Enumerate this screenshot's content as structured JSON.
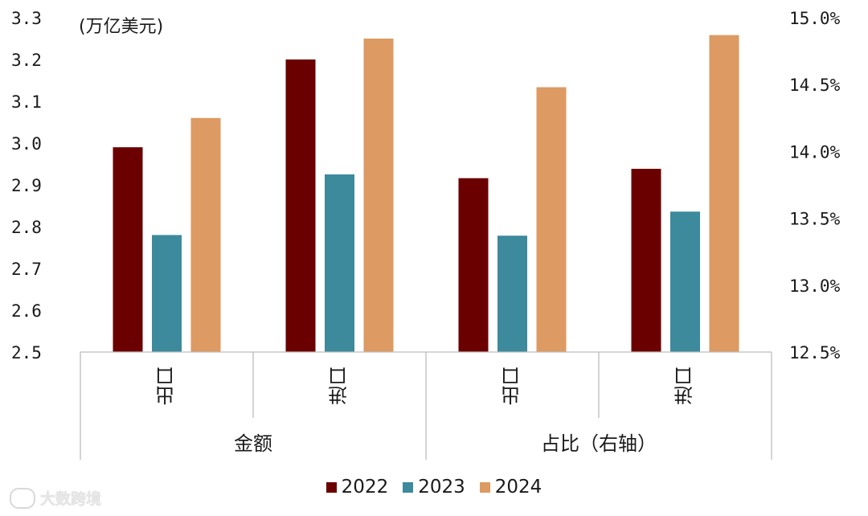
{
  "chart_data": {
    "type": "bar",
    "unit_label": "(万亿美元)",
    "left_axis": {
      "ticks": [
        "3.3",
        "3.2",
        "3.1",
        "3.0",
        "2.9",
        "2.8",
        "2.7",
        "2.6",
        "2.5"
      ],
      "ylim": [
        2.5,
        3.3
      ]
    },
    "right_axis": {
      "ticks": [
        "15.0%",
        "14.5%",
        "14.0%",
        "13.5%",
        "13.0%",
        "12.5%"
      ],
      "ylim": [
        12.5,
        15.0
      ]
    },
    "groups": [
      {
        "label": "金额",
        "axis": "left",
        "categories": [
          {
            "label": "出口",
            "values": [
              2.99,
              2.78,
              3.06
            ]
          },
          {
            "label": "进口",
            "values": [
              3.2,
              2.925,
              3.25
            ]
          }
        ]
      },
      {
        "label": "占比（右轴）",
        "axis": "right",
        "categories": [
          {
            "label": "出口",
            "values": [
              13.8,
              13.37,
              14.48
            ]
          },
          {
            "label": "进口",
            "values": [
              13.87,
              13.55,
              14.87
            ]
          }
        ]
      }
    ],
    "series": [
      {
        "name": "2022",
        "color": "#6b0000"
      },
      {
        "name": "2023",
        "color": "#3c8a9c"
      },
      {
        "name": "2024",
        "color": "#dd9a62"
      }
    ]
  },
  "watermark": {
    "text": "大数跨境"
  }
}
